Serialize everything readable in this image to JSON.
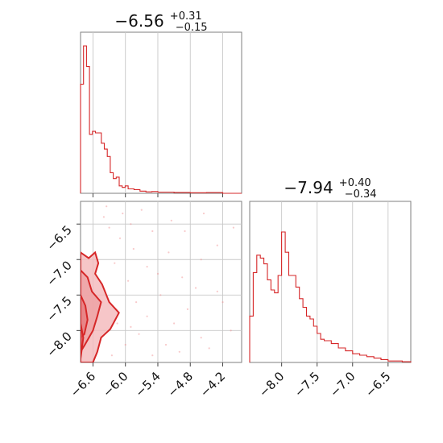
{
  "colors": {
    "series": "#d62728",
    "fill_light": "#f4b8ba",
    "fill_dark": "#e05a5c",
    "points": "#f08a8c"
  },
  "panels": {
    "top_title": {
      "median": "−6.56",
      "plus": "+0.31",
      "minus": "−0.15"
    },
    "right_title": {
      "median": "−7.94",
      "plus": "+0.40",
      "minus": "−0.34"
    }
  },
  "chart_data": [
    {
      "type": "histogram",
      "panel": "top-left",
      "title": "−6.56 +0.31 −0.15",
      "x_range": [
        -6.83,
        -3.85
      ],
      "bins": [
        {
          "x0": -6.83,
          "x1": -6.775,
          "v": 0.74
        },
        {
          "x0": -6.775,
          "x1": -6.72,
          "v": 1.0
        },
        {
          "x0": -6.72,
          "x1": -6.665,
          "v": 0.86
        },
        {
          "x0": -6.665,
          "x1": -6.61,
          "v": 0.4
        },
        {
          "x0": -6.61,
          "x1": -6.555,
          "v": 0.42
        },
        {
          "x0": -6.555,
          "x1": -6.445,
          "v": 0.41
        },
        {
          "x0": -6.445,
          "x1": -6.39,
          "v": 0.34
        },
        {
          "x0": -6.39,
          "x1": -6.335,
          "v": 0.3
        },
        {
          "x0": -6.335,
          "x1": -6.28,
          "v": 0.25
        },
        {
          "x0": -6.28,
          "x1": -6.225,
          "v": 0.14
        },
        {
          "x0": -6.225,
          "x1": -6.17,
          "v": 0.1
        },
        {
          "x0": -6.17,
          "x1": -6.115,
          "v": 0.11
        },
        {
          "x0": -6.115,
          "x1": -6.06,
          "v": 0.05
        },
        {
          "x0": -6.06,
          "x1": -6.005,
          "v": 0.04
        },
        {
          "x0": -6.005,
          "x1": -5.95,
          "v": 0.05
        },
        {
          "x0": -5.95,
          "x1": -5.84,
          "v": 0.03
        },
        {
          "x0": -5.84,
          "x1": -5.73,
          "v": 0.025
        },
        {
          "x0": -5.73,
          "x1": -5.62,
          "v": 0.015
        },
        {
          "x0": -5.62,
          "x1": -5.51,
          "v": 0.01
        },
        {
          "x0": -5.51,
          "x1": -5.4,
          "v": 0.012
        },
        {
          "x0": -5.4,
          "x1": -5.1,
          "v": 0.008
        },
        {
          "x0": -5.1,
          "x1": -4.8,
          "v": 0.006
        },
        {
          "x0": -4.8,
          "x1": -4.5,
          "v": 0.004
        },
        {
          "x0": -4.5,
          "x1": -4.2,
          "v": 0.005
        },
        {
          "x0": -4.2,
          "x1": -3.85,
          "v": 0.0
        }
      ]
    },
    {
      "type": "scatter",
      "panel": "bottom-left",
      "x_range": [
        -6.83,
        -3.85
      ],
      "y_range": [
        -8.45,
        -6.18
      ],
      "x_ticks": [
        -6.6,
        -6.0,
        -5.4,
        -4.8,
        -4.2
      ],
      "y_ticks": [
        -8.0,
        -7.5,
        -7.0,
        -6.5
      ],
      "x_tick_labels": [
        "−6.6",
        "−6.0",
        "−5.4",
        "−4.8",
        "−4.2"
      ],
      "y_tick_labels": [
        "−8.0",
        "−7.5",
        "−7.0",
        "−6.5"
      ],
      "contours": [
        [
          [
            -6.83,
            -6.9
          ],
          [
            -6.68,
            -6.98
          ],
          [
            -6.56,
            -6.9
          ],
          [
            -6.5,
            -7.05
          ],
          [
            -6.56,
            -7.2
          ],
          [
            -6.43,
            -7.35
          ],
          [
            -6.3,
            -7.6
          ],
          [
            -6.12,
            -7.75
          ],
          [
            -6.28,
            -7.98
          ],
          [
            -6.45,
            -8.1
          ],
          [
            -6.52,
            -8.3
          ],
          [
            -6.6,
            -8.45
          ],
          [
            -6.83,
            -8.45
          ]
        ],
        [
          [
            -6.83,
            -7.15
          ],
          [
            -6.7,
            -7.25
          ],
          [
            -6.62,
            -7.45
          ],
          [
            -6.45,
            -7.6
          ],
          [
            -6.52,
            -7.8
          ],
          [
            -6.6,
            -8.0
          ],
          [
            -6.75,
            -8.2
          ],
          [
            -6.83,
            -8.3
          ]
        ],
        [
          [
            -6.83,
            -7.5
          ],
          [
            -6.74,
            -7.65
          ],
          [
            -6.7,
            -7.85
          ],
          [
            -6.76,
            -8.05
          ],
          [
            -6.83,
            -8.1
          ]
        ],
        [
          [
            -6.83,
            -7.9
          ],
          [
            -6.78,
            -8.1
          ],
          [
            -6.83,
            -8.4
          ]
        ]
      ],
      "points": [
        [
          -6.4,
          -6.4
        ],
        [
          -6.1,
          -6.7
        ],
        [
          -5.9,
          -6.5
        ],
        [
          -5.7,
          -6.3
        ],
        [
          -5.5,
          -6.6
        ],
        [
          -5.2,
          -6.9
        ],
        [
          -4.9,
          -6.6
        ],
        [
          -4.6,
          -7.0
        ],
        [
          -4.3,
          -6.8
        ],
        [
          -4.0,
          -6.55
        ],
        [
          -6.2,
          -7.05
        ],
        [
          -5.95,
          -7.3
        ],
        [
          -5.8,
          -7.6
        ],
        [
          -5.6,
          -7.8
        ],
        [
          -5.35,
          -7.5
        ],
        [
          -5.1,
          -7.9
        ],
        [
          -4.85,
          -7.7
        ],
        [
          -4.6,
          -8.1
        ],
        [
          -4.3,
          -7.45
        ],
        [
          -4.05,
          -8.0
        ],
        [
          -6.0,
          -8.2
        ],
        [
          -5.75,
          -8.05
        ],
        [
          -5.5,
          -8.35
        ],
        [
          -5.25,
          -8.2
        ],
        [
          -6.3,
          -6.55
        ],
        [
          -6.05,
          -6.35
        ],
        [
          -5.6,
          -7.1
        ],
        [
          -5.4,
          -7.2
        ],
        [
          -4.95,
          -7.25
        ],
        [
          -4.7,
          -7.4
        ],
        [
          -6.15,
          -7.9
        ],
        [
          -5.9,
          -7.95
        ],
        [
          -6.25,
          -8.35
        ],
        [
          -5.0,
          -8.3
        ],
        [
          -4.45,
          -8.25
        ],
        [
          -4.2,
          -7.6
        ],
        [
          -5.85,
          -6.85
        ],
        [
          -5.15,
          -6.45
        ],
        [
          -4.55,
          -6.35
        ],
        [
          -6.35,
          -6.25
        ]
      ]
    },
    {
      "type": "histogram",
      "panel": "bottom-right",
      "title": "−7.94 +0.40 −0.34",
      "x_range": [
        -8.45,
        -6.18
      ],
      "x_ticks": [
        -8.0,
        -7.5,
        -7.0,
        -6.5
      ],
      "x_tick_labels": [
        "−8.0",
        "−7.5",
        "−7.0",
        "−6.5"
      ],
      "bins": [
        {
          "x0": -8.45,
          "x1": -8.4,
          "v": 0.32
        },
        {
          "x0": -8.4,
          "x1": -8.35,
          "v": 0.62
        },
        {
          "x0": -8.35,
          "x1": -8.3,
          "v": 0.74
        },
        {
          "x0": -8.3,
          "x1": -8.25,
          "v": 0.72
        },
        {
          "x0": -8.25,
          "x1": -8.2,
          "v": 0.68
        },
        {
          "x0": -8.2,
          "x1": -8.15,
          "v": 0.57
        },
        {
          "x0": -8.15,
          "x1": -8.1,
          "v": 0.5
        },
        {
          "x0": -8.1,
          "x1": -8.05,
          "v": 0.48
        },
        {
          "x0": -8.05,
          "x1": -8.0,
          "v": 0.6
        },
        {
          "x0": -8.0,
          "x1": -7.95,
          "v": 0.9
        },
        {
          "x0": -7.95,
          "x1": -7.9,
          "v": 0.76
        },
        {
          "x0": -7.9,
          "x1": -7.85,
          "v": 0.6
        },
        {
          "x0": -7.85,
          "x1": -7.8,
          "v": 0.6
        },
        {
          "x0": -7.8,
          "x1": -7.75,
          "v": 0.52
        },
        {
          "x0": -7.75,
          "x1": -7.7,
          "v": 0.44
        },
        {
          "x0": -7.7,
          "x1": -7.65,
          "v": 0.38
        },
        {
          "x0": -7.65,
          "x1": -7.6,
          "v": 0.32
        },
        {
          "x0": -7.6,
          "x1": -7.55,
          "v": 0.3
        },
        {
          "x0": -7.55,
          "x1": -7.5,
          "v": 0.25
        },
        {
          "x0": -7.5,
          "x1": -7.45,
          "v": 0.2
        },
        {
          "x0": -7.45,
          "x1": -7.4,
          "v": 0.16
        },
        {
          "x0": -7.4,
          "x1": -7.3,
          "v": 0.15
        },
        {
          "x0": -7.3,
          "x1": -7.2,
          "v": 0.13
        },
        {
          "x0": -7.2,
          "x1": -7.1,
          "v": 0.1
        },
        {
          "x0": -7.1,
          "x1": -7.0,
          "v": 0.08
        },
        {
          "x0": -7.0,
          "x1": -6.9,
          "v": 0.06
        },
        {
          "x0": -6.9,
          "x1": -6.8,
          "v": 0.05
        },
        {
          "x0": -6.8,
          "x1": -6.7,
          "v": 0.04
        },
        {
          "x0": -6.7,
          "x1": -6.6,
          "v": 0.03
        },
        {
          "x0": -6.6,
          "x1": -6.5,
          "v": 0.02
        },
        {
          "x0": -6.5,
          "x1": -6.3,
          "v": 0.01
        },
        {
          "x0": -6.3,
          "x1": -6.18,
          "v": 0.005
        }
      ]
    }
  ]
}
